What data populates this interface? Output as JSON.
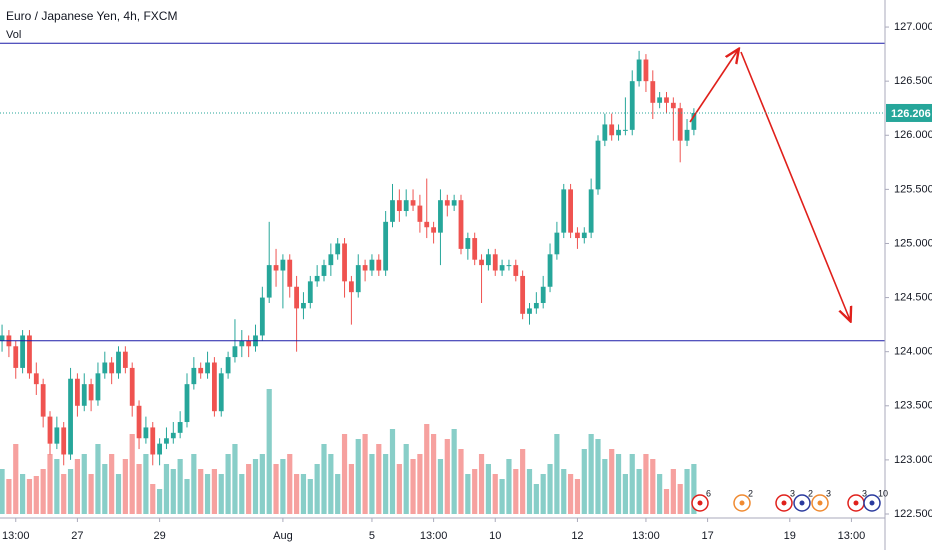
{
  "chart_data": {
    "type": "candlestick",
    "title": "Euro / Japanese Yen, 4h, FXCM",
    "volume_label": "Vol",
    "up_color": "#26a69a",
    "down_color": "#ef5350",
    "ylim": [
      122.5,
      127.25
    ],
    "yticks": [
      {
        "value": 122.5,
        "label": "122.500"
      },
      {
        "value": 123,
        "label": "123.000"
      },
      {
        "value": 123.5,
        "label": "123.500"
      },
      {
        "value": 124,
        "label": "124.000"
      },
      {
        "value": 124.5,
        "label": "124.500"
      },
      {
        "value": 125,
        "label": "125.000"
      },
      {
        "value": 125.5,
        "label": "125.500"
      },
      {
        "value": 126,
        "label": "126.000"
      },
      {
        "value": 126.5,
        "label": "126.500"
      },
      {
        "value": 127,
        "label": "127.000"
      }
    ],
    "xlim": [
      -0.3,
      128.9
    ],
    "xticks": [
      {
        "value": 2,
        "label": "13:00"
      },
      {
        "value": 11,
        "label": "27"
      },
      {
        "value": 23,
        "label": "29"
      },
      {
        "value": 41,
        "label": "Aug"
      },
      {
        "value": 54,
        "label": "5"
      },
      {
        "value": 63,
        "label": "13:00"
      },
      {
        "value": 72,
        "label": "10"
      },
      {
        "value": 84,
        "label": "12"
      },
      {
        "value": 94,
        "label": "13:00"
      },
      {
        "value": 103,
        "label": "17"
      },
      {
        "value": 115,
        "label": "19"
      },
      {
        "value": 124,
        "label": "13:00"
      }
    ],
    "last_price": {
      "value": 126.206,
      "label": "126.206"
    },
    "events": [
      6,
      2,
      3,
      2,
      3,
      3,
      10
    ],
    "candles": [
      [
        124.1,
        124.25,
        124.0,
        124.15
      ],
      [
        124.15,
        124.2,
        123.95,
        124.05
      ],
      [
        124.05,
        124.1,
        123.75,
        123.85
      ],
      [
        123.85,
        124.2,
        123.8,
        124.15
      ],
      [
        124.15,
        124.2,
        123.75,
        123.8
      ],
      [
        123.8,
        123.9,
        123.6,
        123.7
      ],
      [
        123.7,
        123.75,
        123.3,
        123.4
      ],
      [
        123.4,
        123.45,
        123.05,
        123.15
      ],
      [
        123.15,
        123.4,
        123.1,
        123.3
      ],
      [
        123.3,
        123.35,
        122.95,
        123.05
      ],
      [
        123.05,
        123.85,
        123.0,
        123.75
      ],
      [
        123.75,
        123.8,
        123.4,
        123.5
      ],
      [
        123.5,
        123.8,
        123.45,
        123.7
      ],
      [
        123.7,
        123.75,
        123.45,
        123.55
      ],
      [
        123.55,
        123.9,
        123.5,
        123.8
      ],
      [
        123.8,
        124.0,
        123.75,
        123.9
      ],
      [
        123.9,
        123.95,
        123.7,
        123.8
      ],
      [
        123.8,
        124.05,
        123.75,
        124.0
      ],
      [
        124.0,
        124.05,
        123.8,
        123.85
      ],
      [
        123.85,
        123.9,
        123.4,
        123.5
      ],
      [
        123.5,
        123.55,
        123.1,
        123.2
      ],
      [
        123.2,
        123.4,
        123.15,
        123.3
      ],
      [
        123.3,
        123.35,
        122.95,
        123.05
      ],
      [
        123.05,
        123.2,
        122.95,
        123.15
      ],
      [
        123.15,
        123.3,
        123.1,
        123.2
      ],
      [
        123.2,
        123.35,
        123.15,
        123.25
      ],
      [
        123.25,
        123.45,
        123.2,
        123.35
      ],
      [
        123.35,
        123.8,
        123.3,
        123.7
      ],
      [
        123.7,
        123.95,
        123.65,
        123.85
      ],
      [
        123.85,
        123.9,
        123.75,
        123.8
      ],
      [
        123.8,
        124.0,
        123.75,
        123.9
      ],
      [
        123.9,
        123.95,
        123.4,
        123.45
      ],
      [
        123.45,
        123.85,
        123.4,
        123.8
      ],
      [
        123.8,
        124.0,
        123.75,
        123.95
      ],
      [
        123.95,
        124.3,
        123.9,
        124.05
      ],
      [
        124.05,
        124.2,
        123.95,
        124.1
      ],
      [
        124.1,
        124.15,
        123.95,
        124.05
      ],
      [
        124.05,
        124.25,
        124.0,
        124.15
      ],
      [
        124.15,
        124.6,
        124.1,
        124.5
      ],
      [
        124.5,
        125.2,
        124.45,
        124.8
      ],
      [
        124.8,
        124.95,
        124.6,
        124.75
      ],
      [
        124.75,
        124.9,
        124.4,
        124.85
      ],
      [
        124.85,
        124.9,
        124.5,
        124.6
      ],
      [
        124.6,
        124.7,
        124.0,
        124.4
      ],
      [
        124.4,
        124.55,
        124.3,
        124.45
      ],
      [
        124.45,
        124.7,
        124.4,
        124.65
      ],
      [
        124.65,
        124.8,
        124.6,
        124.7
      ],
      [
        124.7,
        124.85,
        124.65,
        124.8
      ],
      [
        124.8,
        125.0,
        124.7,
        124.9
      ],
      [
        124.9,
        125.05,
        124.85,
        125.0
      ],
      [
        125.0,
        125.05,
        124.5,
        124.65
      ],
      [
        124.65,
        124.7,
        124.25,
        124.55
      ],
      [
        124.55,
        124.9,
        124.5,
        124.8
      ],
      [
        124.8,
        124.85,
        124.65,
        124.75
      ],
      [
        124.75,
        124.9,
        124.7,
        124.85
      ],
      [
        124.85,
        124.9,
        124.7,
        124.75
      ],
      [
        124.75,
        125.3,
        124.7,
        125.2
      ],
      [
        125.2,
        125.55,
        125.15,
        125.4
      ],
      [
        125.4,
        125.5,
        125.2,
        125.3
      ],
      [
        125.3,
        125.5,
        125.25,
        125.4
      ],
      [
        125.4,
        125.5,
        125.3,
        125.35
      ],
      [
        125.35,
        125.45,
        125.1,
        125.2
      ],
      [
        125.2,
        125.6,
        125.05,
        125.15
      ],
      [
        125.15,
        125.2,
        125.0,
        125.1
      ],
      [
        125.1,
        125.5,
        124.8,
        125.4
      ],
      [
        125.4,
        125.45,
        125.25,
        125.35
      ],
      [
        125.35,
        125.45,
        125.3,
        125.4
      ],
      [
        125.4,
        125.45,
        124.9,
        124.95
      ],
      [
        124.95,
        125.1,
        124.85,
        125.05
      ],
      [
        125.05,
        125.1,
        124.8,
        124.85
      ],
      [
        124.85,
        124.9,
        124.45,
        124.8
      ],
      [
        124.8,
        124.95,
        124.75,
        124.9
      ],
      [
        124.9,
        124.95,
        124.7,
        124.75
      ],
      [
        124.75,
        124.85,
        124.7,
        124.8
      ],
      [
        124.8,
        124.85,
        124.75,
        124.8
      ],
      [
        124.8,
        124.85,
        124.65,
        124.7
      ],
      [
        124.7,
        124.75,
        124.3,
        124.35
      ],
      [
        124.35,
        124.45,
        124.25,
        124.4
      ],
      [
        124.4,
        124.55,
        124.35,
        124.45
      ],
      [
        124.45,
        124.7,
        124.4,
        124.6
      ],
      [
        124.6,
        125.0,
        124.55,
        124.9
      ],
      [
        124.9,
        125.2,
        124.85,
        125.1
      ],
      [
        125.1,
        125.55,
        125.05,
        125.5
      ],
      [
        125.5,
        125.55,
        125.05,
        125.1
      ],
      [
        125.1,
        125.15,
        124.95,
        125.05
      ],
      [
        125.05,
        125.15,
        125.0,
        125.1
      ],
      [
        125.1,
        125.6,
        125.05,
        125.5
      ],
      [
        125.5,
        126.0,
        125.45,
        125.95
      ],
      [
        125.95,
        126.2,
        125.9,
        126.1
      ],
      [
        126.1,
        126.2,
        125.95,
        126.0
      ],
      [
        126.0,
        126.1,
        125.95,
        126.05
      ],
      [
        126.05,
        126.35,
        126.0,
        126.05
      ],
      [
        126.05,
        126.6,
        126.0,
        126.5
      ],
      [
        126.5,
        126.78,
        126.45,
        126.7
      ],
      [
        126.7,
        126.75,
        126.4,
        126.5
      ],
      [
        126.5,
        126.6,
        126.15,
        126.3
      ],
      [
        126.3,
        126.4,
        126.25,
        126.35
      ],
      [
        126.35,
        126.4,
        126.2,
        126.3
      ],
      [
        126.3,
        126.35,
        125.95,
        126.25
      ],
      [
        126.25,
        126.3,
        125.75,
        125.95
      ],
      [
        125.95,
        126.15,
        125.9,
        126.05
      ],
      [
        126.05,
        126.25,
        126.0,
        126.206
      ]
    ],
    "volume": [
      45,
      35,
      70,
      40,
      35,
      38,
      45,
      60,
      55,
      40,
      45,
      55,
      60,
      40,
      70,
      50,
      60,
      40,
      55,
      80,
      50,
      60,
      30,
      25,
      50,
      45,
      55,
      35,
      60,
      45,
      40,
      45,
      40,
      60,
      70,
      40,
      50,
      55,
      60,
      125,
      50,
      55,
      60,
      40,
      40,
      35,
      50,
      70,
      60,
      40,
      80,
      50,
      75,
      80,
      60,
      70,
      60,
      85,
      50,
      70,
      55,
      60,
      90,
      80,
      55,
      75,
      85,
      65,
      40,
      45,
      60,
      50,
      40,
      35,
      55,
      45,
      65,
      45,
      30,
      40,
      50,
      80,
      45,
      40,
      35,
      65,
      80,
      75,
      55,
      65,
      60,
      40,
      60,
      45,
      60,
      55,
      40,
      25,
      45,
      30,
      45,
      50
    ]
  }
}
